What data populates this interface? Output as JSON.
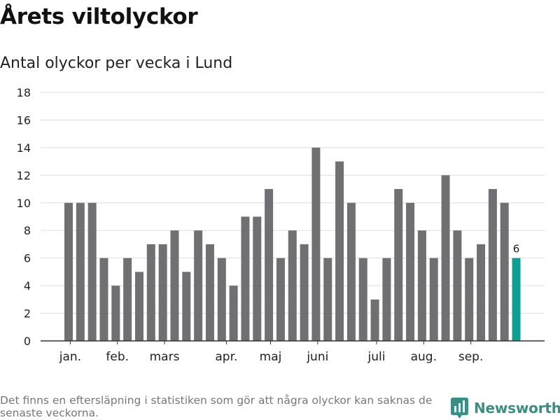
{
  "header": {
    "title": "Årets viltolyckor",
    "subtitle": "Antal olyckor per vecka i Lund"
  },
  "footer": {
    "note": "Det finns en eftersläpning i statistiken som gör att några olyckor kan saknas de senaste veckorna.",
    "brand": "Newsworthy"
  },
  "colors": {
    "bar": "#707073",
    "highlight": "#109e93",
    "grid": "#dddddd",
    "axis": "#333333",
    "brand": "#3a8f84"
  },
  "chart_data": {
    "type": "bar",
    "title": "",
    "xlabel": "",
    "ylabel": "",
    "ylim": [
      0,
      18
    ],
    "yticks": [
      0,
      2,
      4,
      6,
      8,
      10,
      12,
      14,
      16,
      18
    ],
    "grid": true,
    "values": [
      10,
      10,
      10,
      6,
      4,
      6,
      5,
      7,
      7,
      8,
      5,
      8,
      7,
      6,
      4,
      9,
      9,
      11,
      6,
      8,
      7,
      14,
      6,
      13,
      10,
      6,
      3,
      6,
      11,
      10,
      8,
      6,
      12,
      8,
      6,
      7,
      11,
      10,
      6
    ],
    "highlight_index": 38,
    "highlight_label": "6",
    "month_labels": [
      {
        "label": "jan.",
        "at_index": 0.5
      },
      {
        "label": "feb.",
        "at_index": 4.5
      },
      {
        "label": "mars",
        "at_index": 8.5
      },
      {
        "label": "apr.",
        "at_index": 13.75
      },
      {
        "label": "maj",
        "at_index": 17.5
      },
      {
        "label": "juni",
        "at_index": 21.5
      },
      {
        "label": "juli",
        "at_index": 26.5
      },
      {
        "label": "aug.",
        "at_index": 30.5
      },
      {
        "label": "sep.",
        "at_index": 34.5
      }
    ]
  }
}
